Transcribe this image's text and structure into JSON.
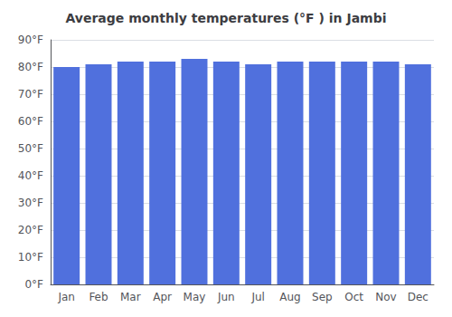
{
  "chart_data": {
    "type": "bar",
    "title": "Average monthly temperatures (°F ) in Jambi",
    "categories": [
      "Jan",
      "Feb",
      "Mar",
      "Apr",
      "May",
      "Jun",
      "Jul",
      "Aug",
      "Sep",
      "Oct",
      "Nov",
      "Dec"
    ],
    "values": [
      80,
      81,
      82,
      82,
      83,
      82,
      81,
      82,
      82,
      82,
      82,
      81
    ],
    "ylim": [
      0,
      90
    ],
    "yticks": [
      {
        "value": 0,
        "label": "0°F"
      },
      {
        "value": 10,
        "label": "10°F"
      },
      {
        "value": 20,
        "label": "20°F"
      },
      {
        "value": 30,
        "label": "30°F"
      },
      {
        "value": 40,
        "label": "40°F"
      },
      {
        "value": 50,
        "label": "50°F"
      },
      {
        "value": 60,
        "label": "60°F"
      },
      {
        "value": 70,
        "label": "70°F"
      },
      {
        "value": 80,
        "label": "80°F"
      },
      {
        "value": 90,
        "label": "90°F"
      }
    ],
    "grid": true
  }
}
